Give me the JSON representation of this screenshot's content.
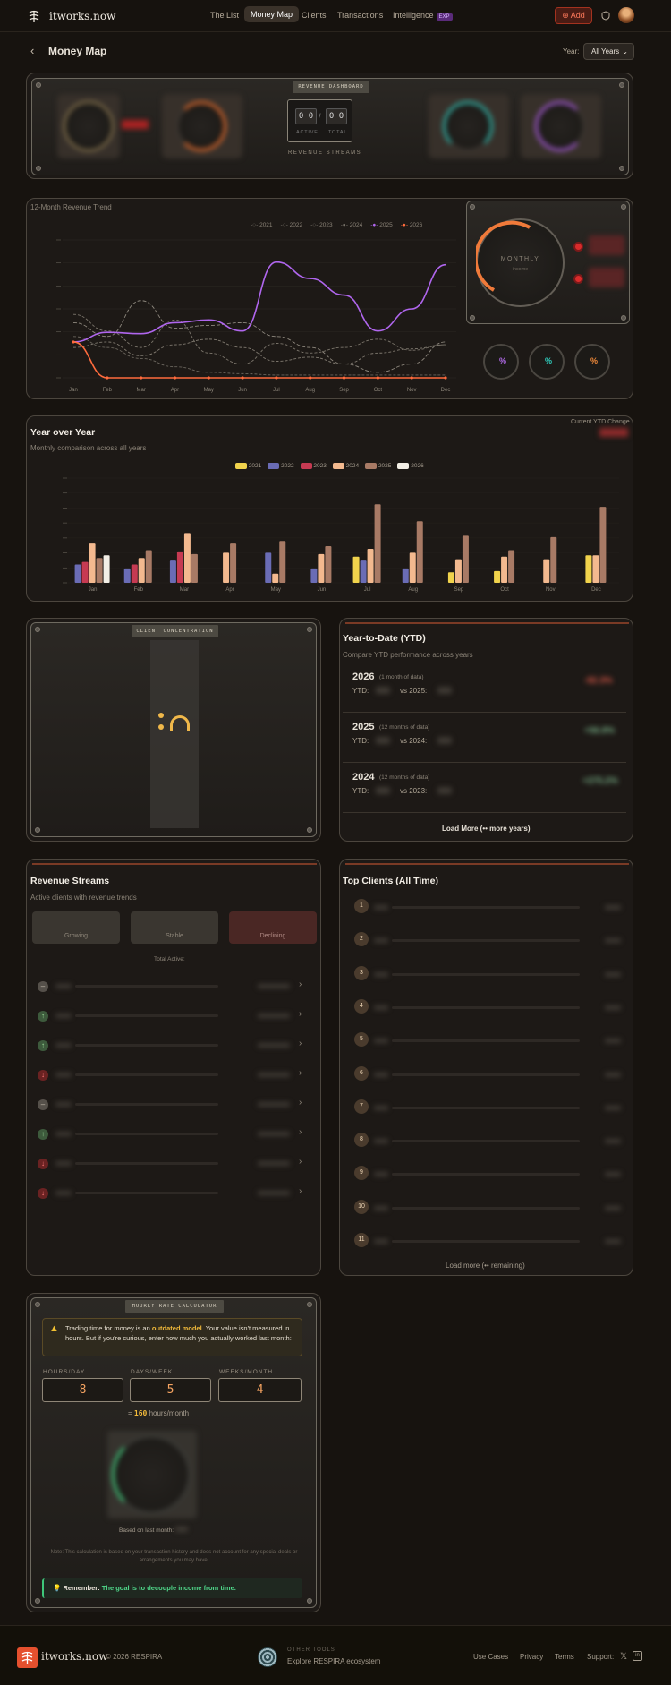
{
  "brand": {
    "name": "itworks.now"
  },
  "nav": {
    "items": [
      "The List",
      "Money Map",
      "Clients",
      "Transactions",
      "Intelligence"
    ],
    "exp_badge": "EXP",
    "add": "Add"
  },
  "header": {
    "back": "‹",
    "title": "Money Map",
    "year_label": "Year:",
    "year_value": "All Years"
  },
  "revenue_dashboard": {
    "plate": "REVENUE DASHBOARD",
    "active_digits": "0 0",
    "total_digits": "0 0",
    "slash": "/",
    "active_label": "ACTIVE",
    "total_label": "TOTAL",
    "streams_label": "REVENUE STREAMS"
  },
  "trend": {
    "title": "12-Month Revenue Trend",
    "legend": [
      "2021",
      "2022",
      "2023",
      "2024",
      "2025",
      "2026"
    ],
    "dial_top": "MONTHLY",
    "dial_bottom": "income",
    "small_gauges": [
      "%",
      "%",
      "%"
    ]
  },
  "yoy": {
    "title": "Year over Year",
    "subtitle": "Monthly comparison across all years",
    "ytd_change_label": "Current YTD Change",
    "legend": [
      "2021",
      "2022",
      "2023",
      "2024",
      "2025",
      "2026"
    ]
  },
  "concentration": {
    "plate": "CLIENT CONCENTRATION"
  },
  "ytd": {
    "title": "Year-to-Date (YTD)",
    "subtitle": "Compare YTD performance across years",
    "rows": [
      {
        "year": "2026",
        "months": "(1 month of data)",
        "ytd": "YTD:",
        "vs": "vs 2025:",
        "change": "-92.3%"
      },
      {
        "year": "2025",
        "months": "(12 months of data)",
        "ytd": "YTD:",
        "vs": "vs 2024:",
        "change": "+56.8%"
      },
      {
        "year": "2024",
        "months": "(12 months of data)",
        "ytd": "YTD:",
        "vs": "vs 2023:",
        "change": "+275.2%"
      }
    ],
    "load_more": "Load More (•• more years)"
  },
  "streams": {
    "title": "Revenue Streams",
    "subtitle": "Active clients with revenue trends",
    "growing": "Growing",
    "stable": "Stable",
    "declining": "Declining",
    "total_active": "Total Active:",
    "trends": [
      "stable",
      "up",
      "up",
      "down",
      "stable",
      "up",
      "down",
      "down"
    ]
  },
  "top_clients": {
    "title": "Top Clients (All Time)",
    "ranks": [
      "1",
      "2",
      "3",
      "4",
      "5",
      "6",
      "7",
      "8",
      "9",
      "10",
      "11"
    ],
    "load_more": "Load more (•• remaining)"
  },
  "calculator": {
    "plate": "HOURLY RATE CALCULATOR",
    "warning_pre": "Trading time for money is an ",
    "warning_em": "outdated model",
    "warning_post": ". Your value isn't measured in hours. But if you're curious, enter how much you actually worked last month:",
    "hours_label": "HOURS/DAY",
    "hours": "8",
    "days_label": "DAYS/WEEK",
    "days": "5",
    "weeks_label": "WEEKS/MONTH",
    "weeks": "4",
    "result_pre": "= ",
    "result_value": "160",
    "result_post": " hours/month",
    "based_on": "Based on last month:",
    "note": "Note: This calculation is based on your transaction history and does not account for any special deals or arrangements you may have.",
    "remember_label": "Remember:",
    "remember_text": "The goal is to decouple income from time."
  },
  "footer": {
    "brand": "itworks.now",
    "copyright": "© 2026 RESPIRA",
    "other_tools": "OTHER TOOLS",
    "ecosystem": "Explore RESPIRA ecosystem",
    "links": [
      "Use Cases",
      "Privacy",
      "Terms"
    ],
    "support": "Support:"
  },
  "chart_data": [
    {
      "type": "line",
      "title": "12-Month Revenue Trend",
      "x": [
        "Jan",
        "Feb",
        "Mar",
        "Apr",
        "May",
        "Jun",
        "Jul",
        "Aug",
        "Sep",
        "Oct",
        "Nov",
        "Dec"
      ],
      "series": [
        {
          "name": "2021",
          "values": [
            30,
            22,
            14,
            8,
            4,
            3,
            2,
            2,
            2,
            2,
            2,
            2
          ]
        },
        {
          "name": "2022",
          "values": [
            22,
            26,
            16,
            24,
            28,
            22,
            12,
            15,
            10,
            18,
            21,
            24
          ]
        },
        {
          "name": "2023",
          "values": [
            40,
            30,
            56,
            36,
            38,
            40,
            30,
            22,
            10,
            4,
            10,
            26
          ]
        },
        {
          "name": "2024",
          "values": [
            46,
            34,
            22,
            42,
            18,
            10,
            25,
            18,
            22,
            28,
            20,
            24
          ]
        },
        {
          "name": "2025",
          "values": [
            26,
            33,
            32,
            40,
            42,
            34,
            84,
            72,
            60,
            34,
            50,
            82
          ]
        },
        {
          "name": "2026",
          "values": [
            26,
            0,
            0,
            0,
            0,
            0,
            0,
            0,
            0,
            0,
            0,
            0
          ]
        }
      ],
      "ylim": [
        0,
        100
      ]
    },
    {
      "type": "bar",
      "title": "Year over Year",
      "categories": [
        "Jan",
        "Feb",
        "Mar",
        "Apr",
        "May",
        "Jun",
        "Jul",
        "Aug",
        "Sep",
        "Oct",
        "Nov",
        "Dec"
      ],
      "series": [
        {
          "name": "2021",
          "values": [
            0,
            0,
            0,
            0,
            0,
            0,
            20,
            0,
            8,
            9,
            0,
            21
          ]
        },
        {
          "name": "2022",
          "values": [
            14,
            11,
            17,
            0,
            23,
            11,
            17,
            11,
            0,
            0,
            0,
            0
          ]
        },
        {
          "name": "2023",
          "values": [
            16,
            14,
            24,
            0,
            0,
            0,
            0,
            0,
            0,
            0,
            0,
            0
          ]
        },
        {
          "name": "2024",
          "values": [
            30,
            19,
            38,
            23,
            7,
            22,
            26,
            23,
            18,
            20,
            18,
            21
          ]
        },
        {
          "name": "2025",
          "values": [
            19,
            25,
            22,
            30,
            32,
            28,
            60,
            47,
            36,
            25,
            35,
            58
          ]
        },
        {
          "name": "2026",
          "values": [
            21,
            0,
            0,
            0,
            0,
            0,
            0,
            0,
            0,
            0,
            0,
            0
          ]
        }
      ],
      "ylim": [
        0,
        80
      ]
    }
  ]
}
